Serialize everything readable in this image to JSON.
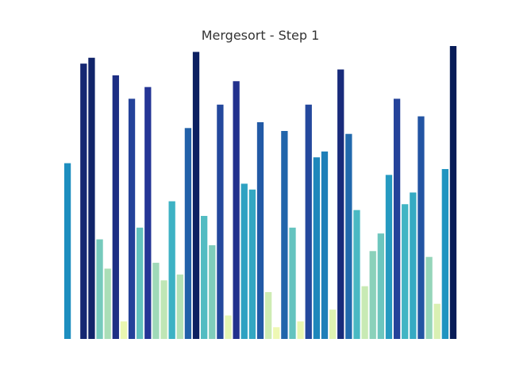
{
  "chart_data": {
    "type": "bar",
    "title": "Mergesort - Step 1",
    "xlabel": "",
    "ylabel": "",
    "ylim": [
      0,
      100
    ],
    "grid": false,
    "legend": "none",
    "colormap": "YlGnBu",
    "values": [
      60,
      0,
      94,
      96,
      34,
      24,
      90,
      6,
      82,
      38,
      86,
      26,
      20,
      47,
      22,
      72,
      98,
      42,
      32,
      80,
      8,
      88,
      53,
      51,
      74,
      16,
      4,
      71,
      38,
      6,
      80,
      62,
      64,
      10,
      92,
      70,
      44,
      18,
      30,
      36,
      56,
      82,
      46,
      50,
      76,
      28,
      12,
      58,
      100
    ]
  }
}
